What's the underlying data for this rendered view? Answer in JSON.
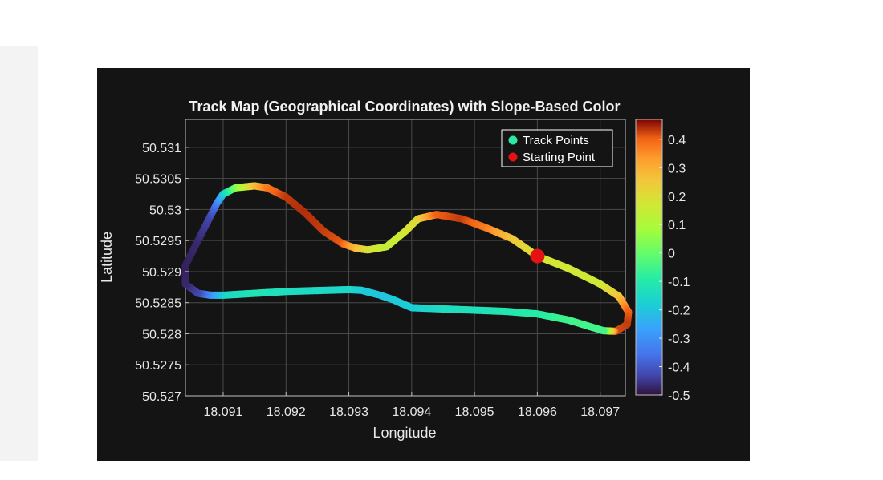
{
  "chart_data": {
    "type": "scatter",
    "title": "Track Map (Geographical Coordinates) with Slope-Based Color",
    "xlabel": "Longitude",
    "ylabel": "Latitude",
    "xlim": [
      18.0904,
      18.0974
    ],
    "ylim": [
      50.527,
      50.53145
    ],
    "x_ticks": [
      18.091,
      18.092,
      18.093,
      18.094,
      18.095,
      18.096,
      18.097
    ],
    "x_tick_labels": [
      "18.091",
      "18.092",
      "18.093",
      "18.094",
      "18.095",
      "18.096",
      "18.097"
    ],
    "y_ticks": [
      50.527,
      50.5275,
      50.528,
      50.5285,
      50.529,
      50.5295,
      50.53,
      50.5305,
      50.531
    ],
    "y_tick_labels": [
      "50.527",
      "50.5275",
      "50.528",
      "50.5285",
      "50.529",
      "50.5295",
      "50.53",
      "50.5305",
      "50.531"
    ],
    "grid": true,
    "background": "#141414",
    "legend": {
      "placement": "top-right",
      "entries": [
        {
          "label": "Track Points",
          "color": "#2ee8a3"
        },
        {
          "label": "Starting Point",
          "color": "#e41212"
        }
      ]
    },
    "colorbar": {
      "colormap": "turbo",
      "range": [
        -0.5,
        0.47
      ],
      "ticks": [
        0.4,
        0.3,
        0.2,
        0.1,
        0,
        -0.1,
        -0.2,
        -0.3,
        -0.4,
        -0.5
      ],
      "tick_labels": [
        "0.4",
        "0.3",
        "0.2",
        "0.1",
        "0",
        "-0.1",
        "-0.2",
        "-0.3",
        "-0.4",
        "-0.5"
      ]
    },
    "starting_point": {
      "x": 18.096,
      "y": 50.52925
    },
    "series": [
      {
        "name": "Track Points",
        "points": [
          [
            18.096,
            50.52925,
            0.18
          ],
          [
            18.0965,
            50.52905,
            0.17
          ],
          [
            18.097,
            50.5288,
            0.16
          ],
          [
            18.0973,
            50.5286,
            0.25
          ],
          [
            18.09745,
            50.52835,
            0.4
          ],
          [
            18.09743,
            50.52815,
            0.43
          ],
          [
            18.09725,
            50.52804,
            0.42
          ],
          [
            18.09705,
            50.52805,
            -0.05
          ],
          [
            18.0965,
            50.52822,
            -0.05
          ],
          [
            18.096,
            50.52832,
            -0.09
          ],
          [
            18.0955,
            50.52836,
            -0.11
          ],
          [
            18.095,
            50.52838,
            -0.13
          ],
          [
            18.0945,
            50.5284,
            -0.14
          ],
          [
            18.094,
            50.52842,
            -0.18
          ],
          [
            18.0937,
            50.52855,
            -0.19
          ],
          [
            18.0935,
            50.52862,
            -0.2
          ],
          [
            18.0932,
            50.5287,
            -0.19
          ],
          [
            18.093,
            50.52871,
            -0.16
          ],
          [
            18.092,
            50.52868,
            -0.14
          ],
          [
            18.0915,
            50.52865,
            -0.12
          ],
          [
            18.091,
            50.52862,
            -0.15
          ],
          [
            18.0908,
            50.52862,
            -0.27
          ],
          [
            18.0906,
            50.52865,
            -0.42
          ],
          [
            18.0904,
            50.5288,
            -0.47
          ],
          [
            18.0904,
            50.5291,
            -0.48
          ],
          [
            18.0906,
            50.5295,
            -0.47
          ],
          [
            18.0908,
            50.5299,
            -0.43
          ],
          [
            18.0909,
            50.5301,
            -0.35
          ],
          [
            18.091,
            50.53025,
            -0.2
          ],
          [
            18.0912,
            50.53035,
            0.02
          ],
          [
            18.0915,
            50.53038,
            0.26
          ],
          [
            18.0917,
            50.53035,
            0.37
          ],
          [
            18.092,
            50.5302,
            0.43
          ],
          [
            18.0923,
            50.52995,
            0.44
          ],
          [
            18.0926,
            50.52965,
            0.43
          ],
          [
            18.0929,
            50.52945,
            0.41
          ],
          [
            18.0931,
            50.52938,
            0.29
          ],
          [
            18.0933,
            50.52935,
            0.2
          ],
          [
            18.0936,
            50.5294,
            0.14
          ],
          [
            18.0939,
            50.52965,
            0.17
          ],
          [
            18.0941,
            50.52985,
            0.21
          ],
          [
            18.0944,
            50.52992,
            0.4
          ],
          [
            18.0948,
            50.52985,
            0.43
          ],
          [
            18.0952,
            50.5297,
            0.37
          ],
          [
            18.0956,
            50.52953,
            0.26
          ]
        ]
      }
    ]
  }
}
